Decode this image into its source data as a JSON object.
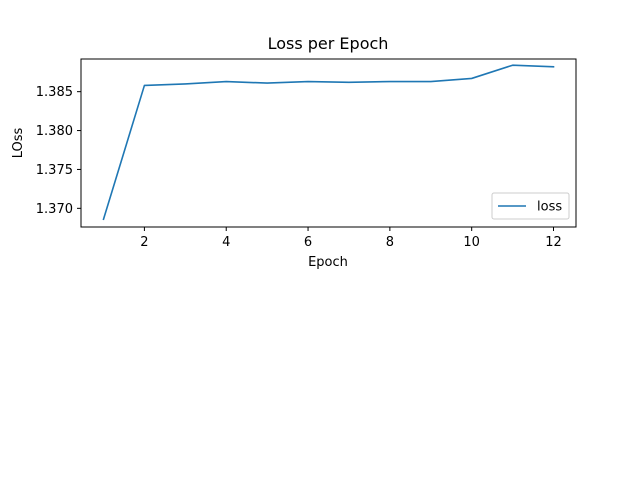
{
  "chart_data": {
    "type": "line",
    "title": "Loss per Epoch",
    "xlabel": "Epoch",
    "ylabel": "LOss",
    "x": [
      1,
      2,
      3,
      4,
      5,
      6,
      7,
      8,
      9,
      10,
      11,
      12
    ],
    "series": [
      {
        "name": "loss",
        "color": "#1f77b4",
        "values": [
          1.3686,
          1.3858,
          1.386,
          1.3863,
          1.3861,
          1.3863,
          1.3862,
          1.3863,
          1.3863,
          1.3867,
          1.3884,
          1.3882
        ]
      }
    ],
    "xlim": [
      0.45,
      12.55
    ],
    "ylim": [
      1.3676,
      1.3892
    ],
    "xticks": [
      2,
      4,
      6,
      8,
      10,
      12
    ],
    "yticks": [
      1.37,
      1.375,
      1.38,
      1.385
    ],
    "xtick_labels": [
      "2",
      "4",
      "6",
      "8",
      "10",
      "12"
    ],
    "ytick_labels": [
      "1.370",
      "1.375",
      "1.380",
      "1.385"
    ],
    "grid": false,
    "legend_position": "lower-right"
  }
}
